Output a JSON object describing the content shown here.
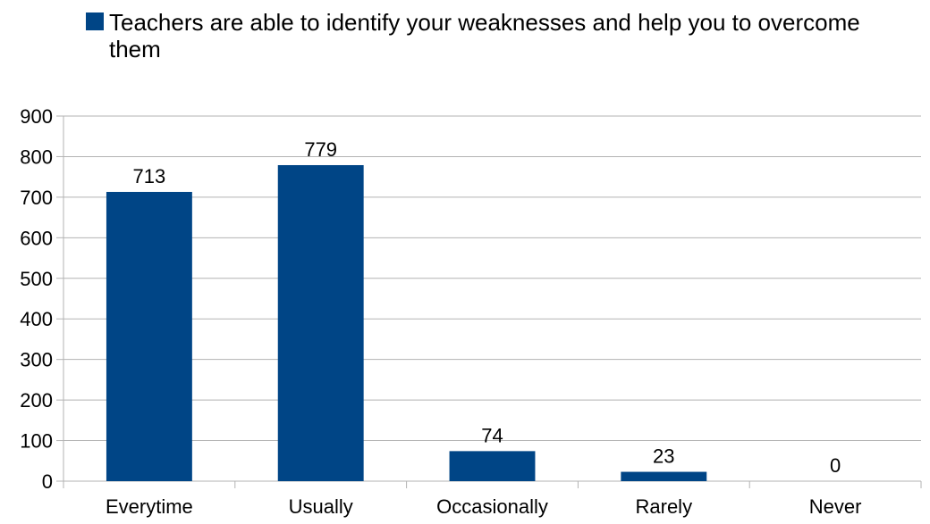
{
  "chart_data": {
    "type": "bar",
    "categories": [
      "Everytime",
      "Usually",
      "Occasionally",
      "Rarely",
      "Never"
    ],
    "series": [
      {
        "name": "Teachers are able to identify your weaknesses and help you to overcome them",
        "values": [
          713,
          779,
          74,
          23,
          0
        ]
      }
    ],
    "data_labels": [
      "713",
      "779",
      "74",
      "23",
      "0"
    ],
    "ylim": [
      0,
      900
    ],
    "yticks": [
      0,
      100,
      200,
      300,
      400,
      500,
      600,
      700,
      800,
      900
    ],
    "grid": true,
    "legend_position": "top",
    "colors": {
      "bar": "#004586",
      "grid": "#b3b3b3",
      "text": "#000000"
    }
  }
}
